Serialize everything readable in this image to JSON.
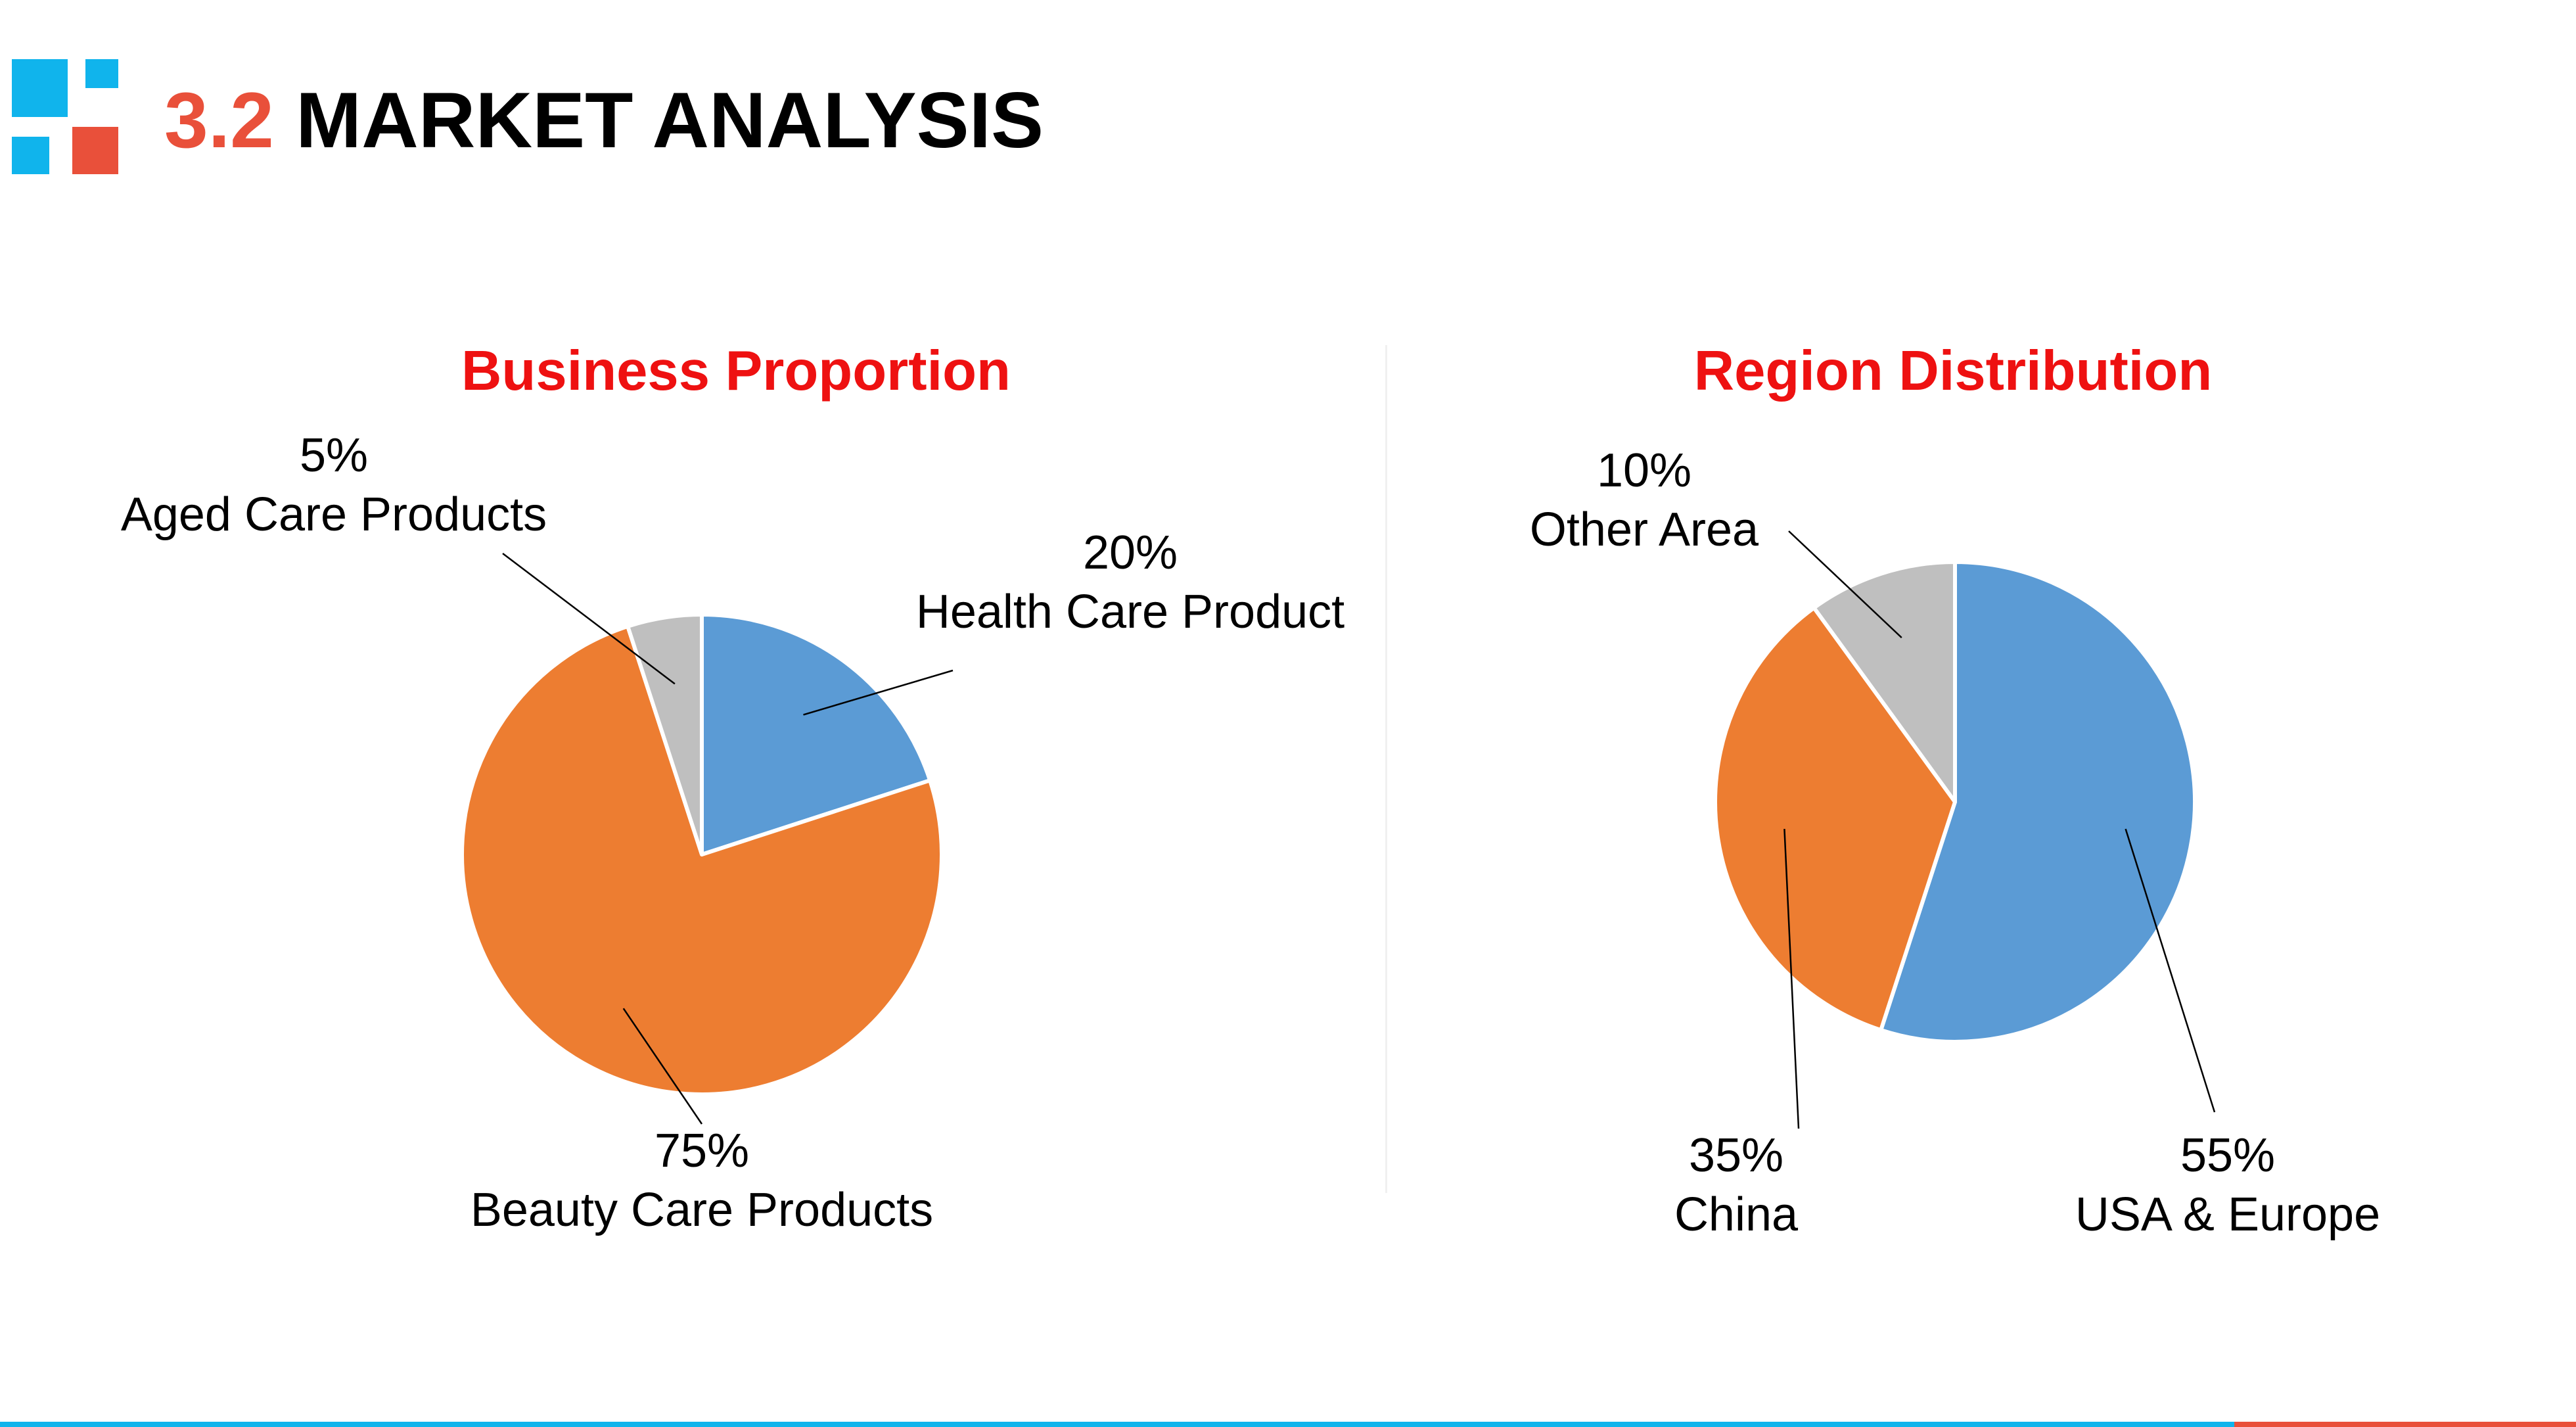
{
  "header": {
    "section_number": "3.2",
    "title": "MARKET ANALYSIS"
  },
  "logo": {
    "colors": {
      "blue": "#10b4ec",
      "orange": "#e9503a"
    }
  },
  "footer": {
    "colors": {
      "main": "#10b4ec",
      "accent": "#e9503a"
    }
  },
  "title_colors": {
    "number": "#e9503a",
    "text": "#000000",
    "chart_titles": "#ee1111"
  },
  "chart_data": [
    {
      "type": "pie",
      "title": "Business Proportion",
      "categories": [
        "Health Care Product",
        "Beauty Care Products",
        "Aged Care Products"
      ],
      "values": [
        20,
        75,
        5
      ],
      "value_labels": [
        "20%",
        "75%",
        "5%"
      ],
      "colors": [
        "#5b9bd5",
        "#ed7d31",
        "#bfbfbf"
      ],
      "start_angle_deg": 0,
      "legend": "none",
      "labels": "outside-with-leader-lines"
    },
    {
      "type": "pie",
      "title": "Region Distribution",
      "categories": [
        "USA & Europe",
        "China",
        "Other Area"
      ],
      "values": [
        55,
        35,
        10
      ],
      "value_labels": [
        "55%",
        "35%",
        "10%"
      ],
      "colors": [
        "#5b9bd5",
        "#ed7d31",
        "#bfbfbf"
      ],
      "start_angle_deg": 0,
      "legend": "none",
      "labels": "outside-with-leader-lines"
    }
  ]
}
